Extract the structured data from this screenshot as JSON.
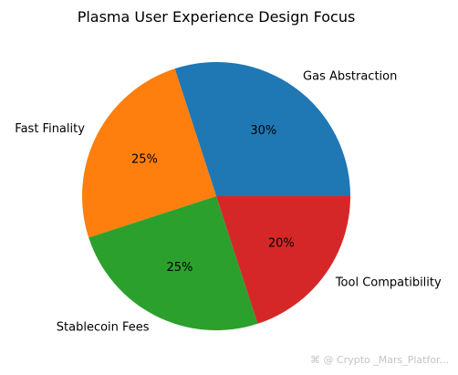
{
  "chart_data": {
    "type": "pie",
    "title": "Plasma User Experience Design Focus",
    "categories": [
      "Gas Abstraction",
      "Fast Finality",
      "Stablecoin Fees",
      "Tool Compatibility"
    ],
    "values": [
      30,
      25,
      25,
      20
    ],
    "value_labels": [
      "30%",
      "25%",
      "25%",
      "20%"
    ],
    "colors": [
      "#1f77b4",
      "#ff7f0e",
      "#2ca02c",
      "#d62728"
    ],
    "start_angle_deg": 0,
    "direction": "counterclockwise",
    "legend": "none"
  },
  "watermark": "⌘ @ Crypto _Mars_Platfor..."
}
